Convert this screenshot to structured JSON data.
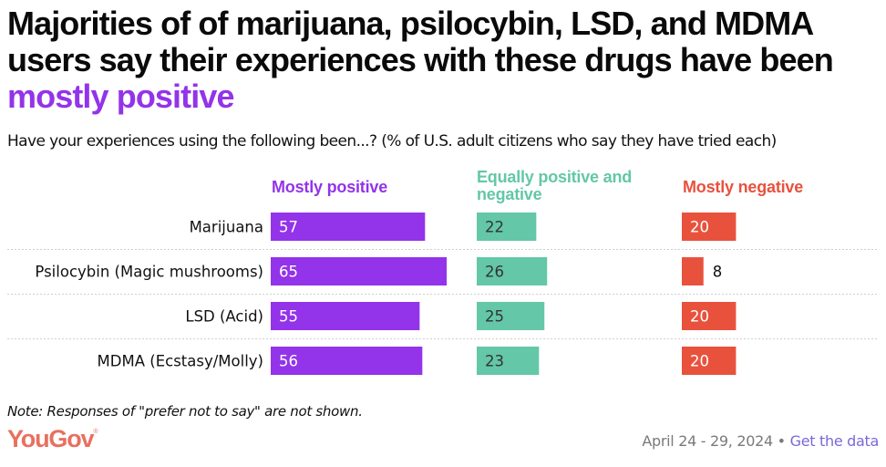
{
  "header": {
    "title_main": "Majorities of of marijuana, psilocybin, LSD, and MDMA users say their experiences with these drugs have been ",
    "title_highlight": "mostly positive",
    "subtitle": "Have your experiences using the following been...? (% of U.S. adult citizens who say they have tried each)"
  },
  "colors": {
    "positive": "#9333ea",
    "mixed": "#63c7a8",
    "negative": "#e8523d",
    "highlight": "#9333ea",
    "brand": "#e8705f",
    "link": "#7b68d8"
  },
  "chart_data": {
    "type": "bar",
    "orientation": "horizontal",
    "layout": "small-multiples",
    "title": "Majorities of of marijuana, psilocybin, LSD, and MDMA users say their experiences with these drugs have been mostly positive",
    "subtitle": "Have your experiences using the following been...? (% of U.S. adult citizens who say they have tried each)",
    "xlabel": "",
    "ylabel": "",
    "unit": "%",
    "xlim": [
      0,
      100
    ],
    "grid": false,
    "legend_position": "top",
    "categories": [
      "Marijuana",
      "Psilocybin (Magic mushrooms)",
      "LSD (Acid)",
      "MDMA (Ecstasy/Molly)"
    ],
    "series": [
      {
        "name": "Mostly positive",
        "color": "#9333ea",
        "label_color": "#ffffff",
        "values": [
          57,
          65,
          55,
          56
        ]
      },
      {
        "name": "Equally positive and negative",
        "color": "#63c7a8",
        "label_color": "#333333",
        "values": [
          22,
          26,
          25,
          23
        ]
      },
      {
        "name": "Mostly negative",
        "color": "#e8523d",
        "label_color": "#ffffff",
        "values": [
          20,
          8,
          20,
          20
        ]
      }
    ]
  },
  "legend": {
    "positive": "Mostly positive",
    "mixed_line1": "Equally positive and",
    "mixed_line2": "negative",
    "negative": "Mostly negative"
  },
  "footer": {
    "note": "Note: Responses of \"prefer not to say\" are not shown.",
    "brand": "YouGov",
    "brand_mark": "®",
    "date": "April 24 - 29, 2024",
    "separator": " • ",
    "link": "Get the data"
  }
}
